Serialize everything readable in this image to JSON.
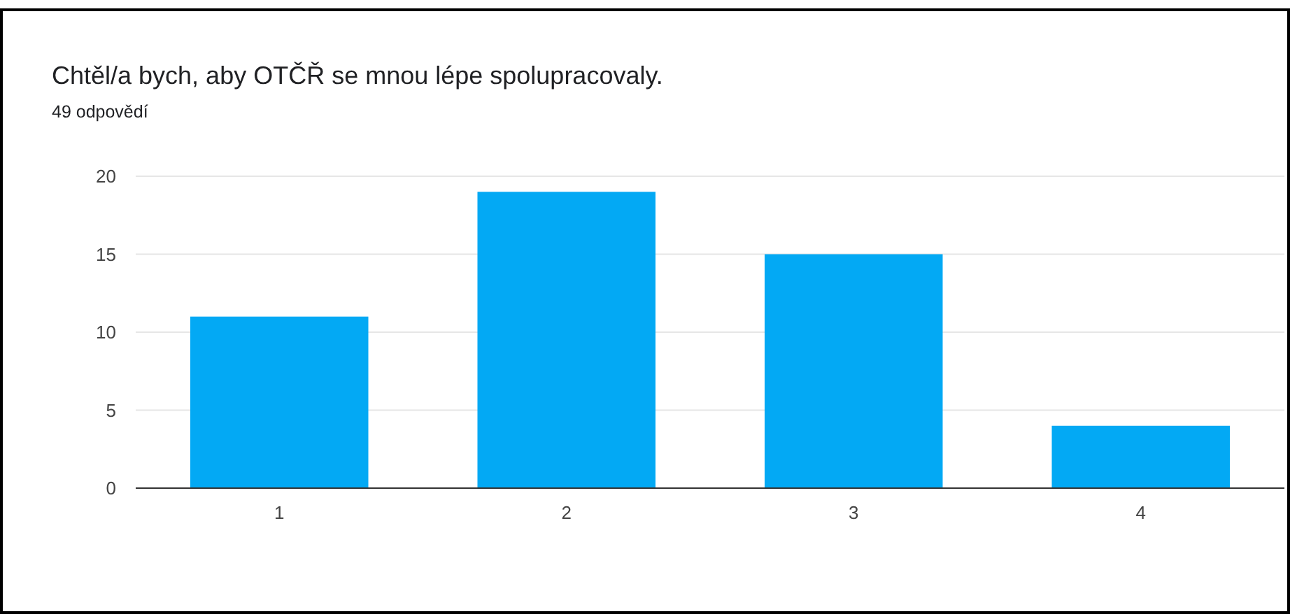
{
  "chart_data": {
    "type": "bar",
    "title": "Chtěl/a bych, aby OTČŘ se mnou lépe spolupracovaly.",
    "subtitle": "49 odpovědí",
    "categories": [
      "1",
      "2",
      "3",
      "4"
    ],
    "values": [
      11,
      19,
      15,
      4
    ],
    "color": "#03a9f4",
    "ylim": [
      0,
      20
    ],
    "yticks": [
      0,
      5,
      10,
      15,
      20
    ],
    "grid": "y"
  }
}
